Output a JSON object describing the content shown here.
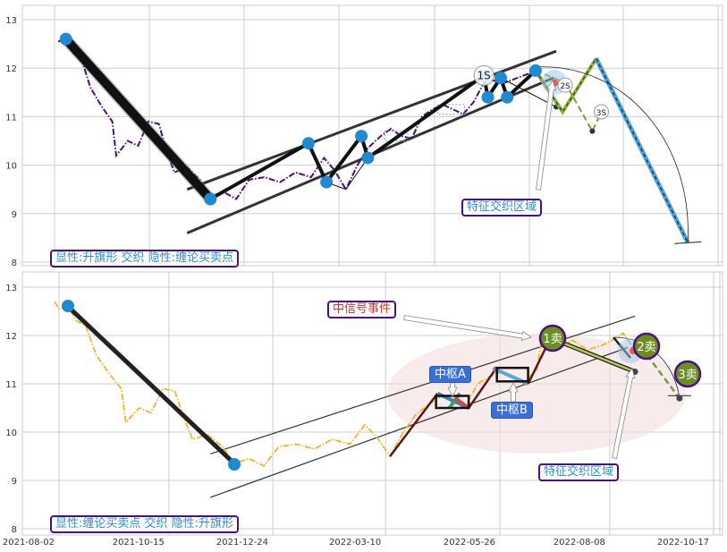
{
  "chart_data": [
    {
      "type": "line",
      "panel": "top",
      "ylim": [
        7.93,
        13.3
      ],
      "yticks": [
        8,
        9,
        10,
        11,
        12,
        13
      ],
      "grid": true,
      "series": [
        {
          "values": [
            [
              "2021-08-02",
              12.55
            ],
            [
              "2021-08-08",
              12.6
            ],
            [
              "2021-08-14",
              12.3
            ],
            [
              "2021-08-20",
              12.2
            ],
            [
              "2021-08-27",
              11.6
            ],
            [
              "2021-09-05",
              11.2
            ],
            [
              "2021-09-13",
              10.9
            ],
            [
              "2021-09-16",
              10.2
            ],
            [
              "2021-09-25",
              10.5
            ],
            [
              "2021-10-03",
              10.4
            ],
            [
              "2021-10-11",
              10.9
            ],
            [
              "2021-10-19",
              10.85
            ],
            [
              "2021-10-25",
              10.3
            ],
            [
              "2021-10-31",
              9.85
            ],
            [
              "2021-11-10",
              9.95
            ],
            [
              "2021-11-20",
              9.7
            ],
            [
              "2021-11-28",
              9.35
            ],
            [
              "2021-12-08",
              9.45
            ],
            [
              "2021-12-18",
              9.3
            ],
            [
              "2021-12-28",
              9.7
            ],
            [
              "2022-01-09",
              9.75
            ],
            [
              "2022-01-21",
              9.65
            ],
            [
              "2022-02-02",
              9.85
            ],
            [
              "2022-02-14",
              9.75
            ],
            [
              "2022-02-24",
              10.15
            ],
            [
              "2022-03-04",
              9.9
            ],
            [
              "2022-03-13",
              9.5
            ],
            [
              "2022-03-22",
              10.0
            ],
            [
              "2022-03-30",
              10.35
            ],
            [
              "2022-04-09",
              10.6
            ],
            [
              "2022-04-17",
              10.75
            ],
            [
              "2022-04-25",
              10.6
            ],
            [
              "2022-05-03",
              10.55
            ],
            [
              "2022-05-11",
              11.0
            ],
            [
              "2022-05-19",
              11.15
            ],
            [
              "2022-05-27",
              11.25
            ],
            [
              "2022-06-04",
              11.15
            ],
            [
              "2022-06-12",
              11.05
            ],
            [
              "2022-06-20",
              11.3
            ],
            [
              "2022-06-28",
              11.7
            ],
            [
              "2022-07-04",
              11.75
            ],
            [
              "2022-07-14",
              11.7
            ],
            [
              "2022-07-24",
              11.8
            ],
            [
              "2022-08-03",
              11.9
            ],
            [
              "2022-08-07",
              11.95
            ]
          ]
        }
      ],
      "pivots": [
        [
          "2021-08-08",
          12.6
        ],
        [
          "2021-11-28",
          9.3
        ],
        [
          "2022-02-12",
          10.45
        ],
        [
          "2022-02-26",
          9.65
        ],
        [
          "2022-03-25",
          10.6
        ],
        [
          "2022-03-30",
          10.15
        ],
        [
          "2022-06-28",
          11.85
        ],
        [
          "2022-07-01",
          11.4
        ],
        [
          "2022-07-11",
          11.8
        ],
        [
          "2022-07-16",
          11.4
        ],
        [
          "2022-08-07",
          11.95
        ]
      ],
      "channel_upper": [
        [
          "2021-11-10",
          9.5
        ],
        [
          "2022-08-23",
          12.35
        ]
      ],
      "channel_lower": [
        [
          "2021-11-10",
          8.6
        ],
        [
          "2022-08-21",
          11.8
        ]
      ],
      "centers": [
        [
          [
            "2022-04-12",
            10.7
          ],
          [
            "2022-04-30",
            10.5
          ]
        ],
        [
          [
            "2022-05-23",
            11.25
          ],
          [
            "2022-06-13",
            11.05
          ]
        ]
      ],
      "projection": [
        [
          "2022-08-07",
          11.95
        ],
        [
          "2022-08-28",
          11.1
        ],
        [
          "2022-09-23",
          12.2
        ],
        [
          "2022-12-03",
          8.4
        ]
      ],
      "alt_projection": [
        [
          "2022-08-30",
          11.7
        ],
        [
          "2022-09-20",
          10.7
        ],
        [
          "2022-09-27",
          11.1
        ]
      ],
      "sell_points": [
        {
          "label": "1S",
          "date": "2022-06-28",
          "value": 11.85
        },
        {
          "label": "2S",
          "date": "2022-08-30",
          "value": 11.65
        },
        {
          "label": "3S",
          "date": "2022-09-27",
          "value": 11.1
        }
      ],
      "annotation": "特征交织区域",
      "caption": "显性:升旗形 交织 隐性:缠论买卖点"
    },
    {
      "type": "line",
      "panel": "bottom",
      "ylim": [
        7.93,
        13.3
      ],
      "yticks": [
        8,
        9,
        10,
        11,
        12,
        13
      ],
      "xticks": [
        "2021-08-02",
        "2021-10-15",
        "2021-12-24",
        "2022-03-10",
        "2022-05-26",
        "2022-08-08",
        "2022-10-17"
      ],
      "grid": true,
      "series": [
        {
          "values": [
            [
              "2021-07-30",
              12.7
            ],
            [
              "2021-08-02",
              12.55
            ],
            [
              "2021-08-08",
              12.6
            ],
            [
              "2021-08-14",
              12.3
            ],
            [
              "2021-08-20",
              12.2
            ],
            [
              "2021-08-27",
              11.6
            ],
            [
              "2021-09-05",
              11.2
            ],
            [
              "2021-09-13",
              10.9
            ],
            [
              "2021-09-16",
              10.2
            ],
            [
              "2021-09-25",
              10.5
            ],
            [
              "2021-10-03",
              10.4
            ],
            [
              "2021-10-11",
              10.9
            ],
            [
              "2021-10-19",
              10.85
            ],
            [
              "2021-10-25",
              10.3
            ],
            [
              "2021-10-31",
              9.85
            ],
            [
              "2021-11-10",
              9.95
            ],
            [
              "2021-11-20",
              9.7
            ],
            [
              "2021-11-28",
              9.35
            ],
            [
              "2021-12-08",
              9.45
            ],
            [
              "2021-12-18",
              9.3
            ],
            [
              "2021-12-28",
              9.7
            ],
            [
              "2022-01-09",
              9.75
            ],
            [
              "2022-01-21",
              9.65
            ],
            [
              "2022-02-02",
              9.85
            ],
            [
              "2022-02-14",
              9.75
            ],
            [
              "2022-02-24",
              10.15
            ],
            [
              "2022-03-04",
              9.9
            ],
            [
              "2022-03-13",
              9.5
            ],
            [
              "2022-03-22",
              10.0
            ],
            [
              "2022-03-30",
              10.35
            ],
            [
              "2022-04-09",
              10.6
            ],
            [
              "2022-04-17",
              10.75
            ],
            [
              "2022-04-25",
              10.6
            ],
            [
              "2022-05-03",
              10.55
            ],
            [
              "2022-05-11",
              11.0
            ],
            [
              "2022-05-19",
              11.15
            ],
            [
              "2022-05-27",
              11.25
            ],
            [
              "2022-06-04",
              11.15
            ],
            [
              "2022-06-12",
              11.05
            ],
            [
              "2022-06-20",
              11.3
            ],
            [
              "2022-06-23",
              11.95
            ],
            [
              "2022-07-04",
              11.75
            ],
            [
              "2022-07-14",
              11.9
            ],
            [
              "2022-07-24",
              11.7
            ],
            [
              "2022-08-03",
              11.8
            ],
            [
              "2022-08-13",
              11.95
            ],
            [
              "2022-08-17",
              12.05
            ],
            [
              "2022-08-25",
              11.7
            ]
          ]
        }
      ],
      "trend_line": [
        [
          "2021-08-08",
          12.6
        ],
        [
          "2021-11-28",
          9.35
        ]
      ],
      "strokes": [
        [
          "2022-03-13",
          9.5
        ],
        [
          "2022-04-14",
          10.8
        ],
        [
          "2022-05-05",
          10.5
        ],
        [
          "2022-05-23",
          11.3
        ],
        [
          "2022-06-14",
          11.0
        ],
        [
          "2022-06-30",
          12.0
        ]
      ],
      "down_stroke": [
        [
          "2022-07-07",
          11.85
        ],
        [
          "2022-08-25",
          11.25
        ]
      ],
      "channel_upper": [
        [
          "2021-11-12",
          9.55
        ],
        [
          "2022-08-25",
          12.4
        ]
      ],
      "channel_lower": [
        [
          "2021-11-12",
          8.65
        ],
        [
          "2022-08-20",
          11.75
        ]
      ],
      "centers": [
        {
          "label": "中枢A",
          "from": [
            "2022-04-13",
            10.75
          ],
          "to": [
            "2022-05-05",
            10.5
          ]
        },
        {
          "label": "中枢B",
          "from": [
            "2022-05-24",
            11.33
          ],
          "to": [
            "2022-06-14",
            11.05
          ]
        }
      ],
      "sell_points": [
        {
          "label": "1卖",
          "date": "2022-06-30",
          "value": 12.0
        },
        {
          "label": "2卖",
          "date": "2022-09-02",
          "value": 11.8
        },
        {
          "label": "3卖",
          "date": "2022-09-29",
          "value": 11.2
        }
      ],
      "alt_projection": [
        [
          "2022-09-02",
          11.6
        ],
        [
          "2022-09-24",
          10.7
        ]
      ],
      "signal_label": "中信号事件",
      "annotation": "特征交织区域",
      "caption": "显性:缠论买卖点 交织 隐性:升旗形"
    }
  ],
  "colors": {
    "pivot": "#1f8ad2",
    "price_top": "#4b0f7f",
    "price_bottom": "#f0b429",
    "sell": "#6b8e23",
    "frame": "#4b0f7f",
    "center_label": "#3b6fd8",
    "zone": "#f3dde0"
  }
}
